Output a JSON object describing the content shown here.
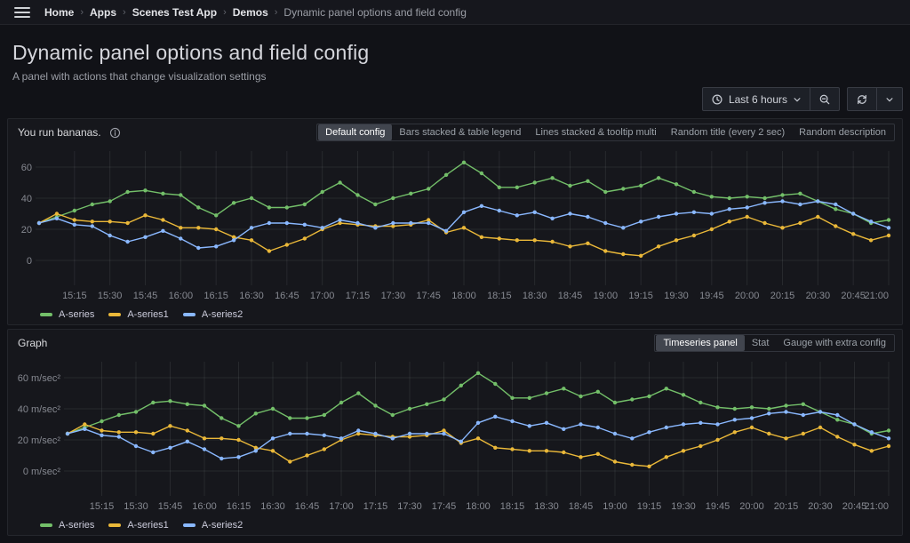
{
  "nav": {
    "breadcrumbs": [
      {
        "label": "Home",
        "current": false
      },
      {
        "label": "Apps",
        "current": false
      },
      {
        "label": "Scenes Test App",
        "current": false
      },
      {
        "label": "Demos",
        "current": false
      },
      {
        "label": "Dynamic panel options and field config",
        "current": true
      }
    ]
  },
  "header": {
    "title": "Dynamic panel options and field config",
    "subtitle": "A panel with actions that change visualization settings"
  },
  "toolbar": {
    "time_range_label": "Last 6 hours",
    "icons": [
      "clock-icon",
      "chevron-down-icon",
      "zoom-out-icon",
      "refresh-icon",
      "chevron-down-icon"
    ]
  },
  "panels": [
    {
      "title": "You run bananas.",
      "has_info_icon": true,
      "options": [
        {
          "label": "Default config",
          "selected": true
        },
        {
          "label": "Bars stacked & table legend",
          "selected": false
        },
        {
          "label": "Lines stacked & tooltip multi",
          "selected": false
        },
        {
          "label": "Random title (every 2 sec)",
          "selected": false
        },
        {
          "label": "Random description",
          "selected": false
        }
      ]
    },
    {
      "title": "Graph",
      "has_info_icon": false,
      "options": [
        {
          "label": "Timeseries panel",
          "selected": true
        },
        {
          "label": "Stat",
          "selected": false
        },
        {
          "label": "Gauge with extra config",
          "selected": false
        }
      ]
    }
  ],
  "colors": {
    "green": "#73BF69",
    "yellow": "#EAB839",
    "blue": "#8AB8FF"
  },
  "chart_data": [
    {
      "type": "line",
      "title": "You run bananas.",
      "unit": "",
      "x_start": "15:00",
      "x_end": "21:00",
      "x_step_minutes": 7.5,
      "x_tick_labels": [
        "15:15",
        "15:30",
        "15:45",
        "16:00",
        "16:15",
        "16:30",
        "16:45",
        "17:00",
        "17:15",
        "17:30",
        "17:45",
        "18:00",
        "18:15",
        "18:30",
        "18:45",
        "19:00",
        "19:15",
        "19:30",
        "19:45",
        "20:00",
        "20:15",
        "20:30",
        "20:45",
        "21:00"
      ],
      "y_ticks": [
        0,
        20,
        40,
        60
      ],
      "y_tick_labels": [
        "0",
        "20",
        "40",
        "60"
      ],
      "ylim": [
        -12,
        70
      ],
      "grid": true,
      "legend_position": "bottom",
      "series": [
        {
          "name": "A-series",
          "color": "#73BF69",
          "values": [
            24,
            28,
            32,
            36,
            38,
            44,
            45,
            43,
            42,
            34,
            29,
            37,
            40,
            34,
            34,
            36,
            44,
            50,
            42,
            36,
            40,
            43,
            46,
            55,
            63,
            56,
            47,
            47,
            50,
            53,
            48,
            51,
            44,
            46,
            48,
            53,
            49,
            44,
            41,
            40,
            41,
            40,
            42,
            43,
            38,
            33,
            30,
            24,
            26
          ]
        },
        {
          "name": "A-series1",
          "color": "#EAB839",
          "values": [
            24,
            30,
            26,
            25,
            25,
            24,
            29,
            26,
            21,
            21,
            20,
            15,
            13,
            6,
            10,
            14,
            20,
            24,
            23,
            22,
            22,
            23,
            26,
            18,
            21,
            15,
            14,
            13,
            13,
            12,
            9,
            11,
            6,
            4,
            3,
            9,
            13,
            16,
            20,
            25,
            28,
            24,
            21,
            24,
            28,
            22,
            17,
            13,
            16
          ]
        },
        {
          "name": "A-series2",
          "color": "#8AB8FF",
          "values": [
            24,
            27,
            23,
            22,
            16,
            12,
            15,
            19,
            14,
            8,
            9,
            13,
            21,
            24,
            24,
            23,
            21,
            26,
            24,
            21,
            24,
            24,
            24,
            19,
            31,
            35,
            32,
            29,
            31,
            27,
            30,
            28,
            24,
            21,
            25,
            28,
            30,
            31,
            30,
            33,
            34,
            37,
            38,
            36,
            38,
            36,
            30,
            25,
            21
          ]
        }
      ]
    },
    {
      "type": "line",
      "title": "Graph",
      "unit": "m/sec²",
      "x_start": "15:00",
      "x_end": "21:00",
      "x_step_minutes": 7.5,
      "x_tick_labels": [
        "15:15",
        "15:30",
        "15:45",
        "16:00",
        "16:15",
        "16:30",
        "16:45",
        "17:00",
        "17:15",
        "17:30",
        "17:45",
        "18:00",
        "18:15",
        "18:30",
        "18:45",
        "19:00",
        "19:15",
        "19:30",
        "19:45",
        "20:00",
        "20:15",
        "20:30",
        "20:45",
        "21:00"
      ],
      "y_ticks": [
        0,
        20,
        40,
        60
      ],
      "y_tick_labels": [
        "0 m/sec²",
        "20 m/sec²",
        "40 m/sec²",
        "60 m/sec²"
      ],
      "ylim": [
        -12,
        70
      ],
      "grid": true,
      "legend_position": "bottom",
      "series": [
        {
          "name": "A-series",
          "color": "#73BF69",
          "values": [
            24,
            28,
            32,
            36,
            38,
            44,
            45,
            43,
            42,
            34,
            29,
            37,
            40,
            34,
            34,
            36,
            44,
            50,
            42,
            36,
            40,
            43,
            46,
            55,
            63,
            56,
            47,
            47,
            50,
            53,
            48,
            51,
            44,
            46,
            48,
            53,
            49,
            44,
            41,
            40,
            41,
            40,
            42,
            43,
            38,
            33,
            30,
            24,
            26
          ]
        },
        {
          "name": "A-series1",
          "color": "#EAB839",
          "values": [
            24,
            30,
            26,
            25,
            25,
            24,
            29,
            26,
            21,
            21,
            20,
            15,
            13,
            6,
            10,
            14,
            20,
            24,
            23,
            22,
            22,
            23,
            26,
            18,
            21,
            15,
            14,
            13,
            13,
            12,
            9,
            11,
            6,
            4,
            3,
            9,
            13,
            16,
            20,
            25,
            28,
            24,
            21,
            24,
            28,
            22,
            17,
            13,
            16
          ]
        },
        {
          "name": "A-series2",
          "color": "#8AB8FF",
          "values": [
            24,
            27,
            23,
            22,
            16,
            12,
            15,
            19,
            14,
            8,
            9,
            13,
            21,
            24,
            24,
            23,
            21,
            26,
            24,
            21,
            24,
            24,
            24,
            19,
            31,
            35,
            32,
            29,
            31,
            27,
            30,
            28,
            24,
            21,
            25,
            28,
            30,
            31,
            30,
            33,
            34,
            37,
            38,
            36,
            38,
            36,
            30,
            25,
            21
          ]
        }
      ]
    }
  ]
}
